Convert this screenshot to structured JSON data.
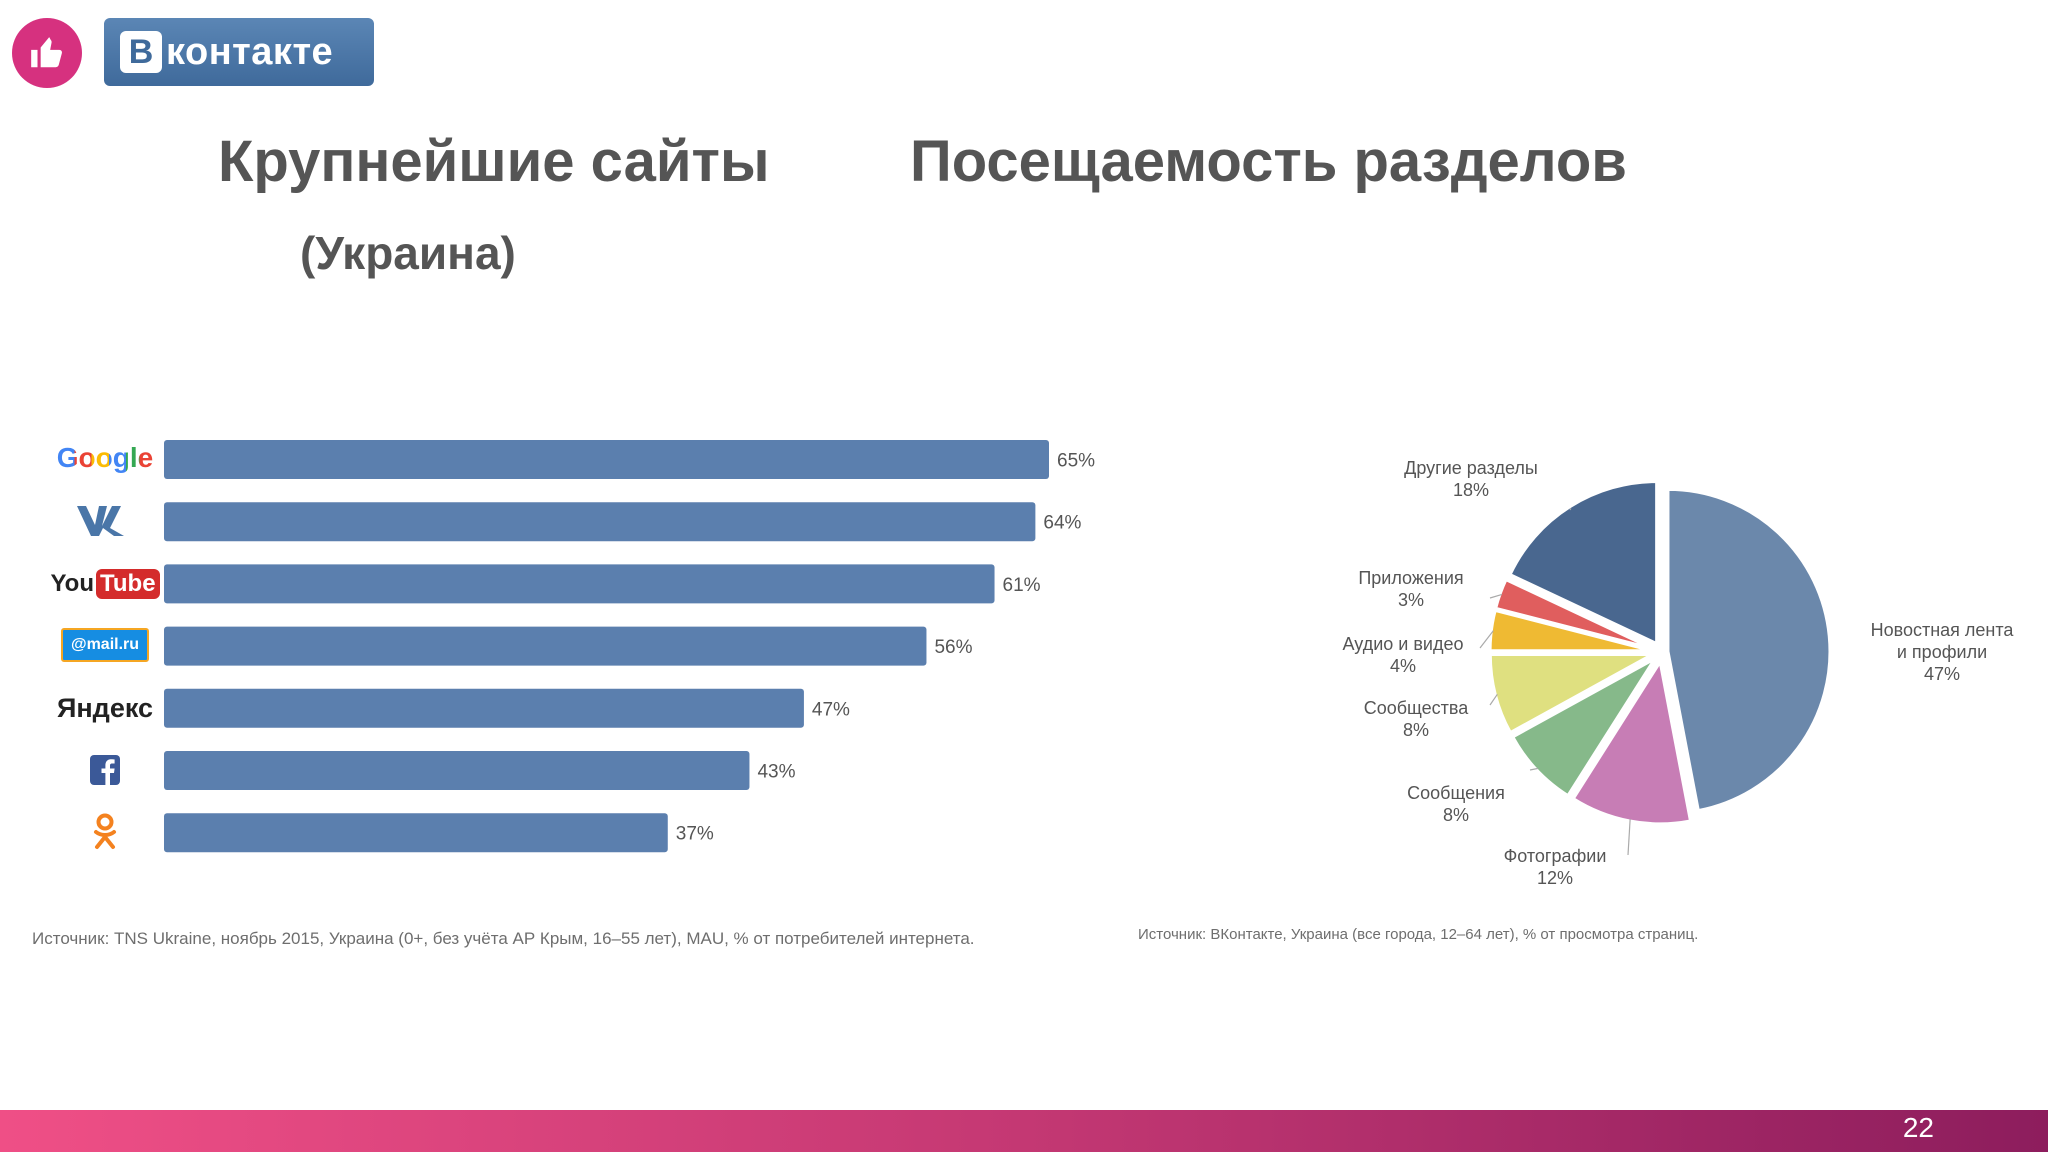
{
  "header": {
    "brand_letter": "В",
    "brand_word": "контакте",
    "like_icon": "thumbs-up-icon"
  },
  "left": {
    "title": "Крупнейшие сайты",
    "subtitle": "(Украина)",
    "source": "Источник: TNS  Ukraine, ноябрь 2015, Украина (0+, без учёта АР Крым, 16–55 лет), MAU, % от потребителей интернета."
  },
  "right": {
    "title": "Посещаемость разделов",
    "source": "Источник: ВКонтакте, Украина (все города, 12–64 лет), % от просмотра страниц."
  },
  "logos": {
    "google": "Google",
    "youtube_you": "You",
    "youtube_tube": "Tube",
    "mailru": "@mail.ru",
    "yandex": "Яндекс"
  },
  "chart_data": [
    {
      "type": "bar",
      "orientation": "horizontal",
      "categories": [
        "Google",
        "ВКонтакте",
        "YouTube",
        "Mail.ru",
        "Яндекс",
        "Facebook",
        "Одноклассники"
      ],
      "values": [
        65,
        64,
        61,
        56,
        47,
        43,
        37
      ],
      "value_labels": [
        "65%",
        "64%",
        "61%",
        "56%",
        "47%",
        "43%",
        "37%"
      ],
      "unit": "%",
      "bar_color": "#5b7fae",
      "xlim": [
        0,
        65
      ]
    },
    {
      "type": "pie",
      "slices": [
        {
          "label": "Новостная лента\nи профили",
          "pct_label": "47%",
          "value": 47,
          "color": "#6b88ab"
        },
        {
          "label": "Фотографии",
          "pct_label": "12%",
          "value": 12,
          "color": "#c77db5"
        },
        {
          "label": "Сообщения",
          "pct_label": "8%",
          "value": 8,
          "color": "#86b98a"
        },
        {
          "label": "Сообщества",
          "pct_label": "8%",
          "value": 8,
          "color": "#dfe080"
        },
        {
          "label": "Аудио и видео",
          "pct_label": "4%",
          "value": 4,
          "color": "#efba33"
        },
        {
          "label": "Приложения",
          "pct_label": "3%",
          "value": 3,
          "color": "#e05e5e"
        },
        {
          "label": "Другие разделы",
          "pct_label": "18%",
          "value": 18,
          "color": "#49678f"
        }
      ]
    }
  ],
  "page_number": "22",
  "colors": {
    "accent_pink": "#d6317f",
    "vk_blue": "#4a76a8",
    "title_gray": "#555555"
  }
}
